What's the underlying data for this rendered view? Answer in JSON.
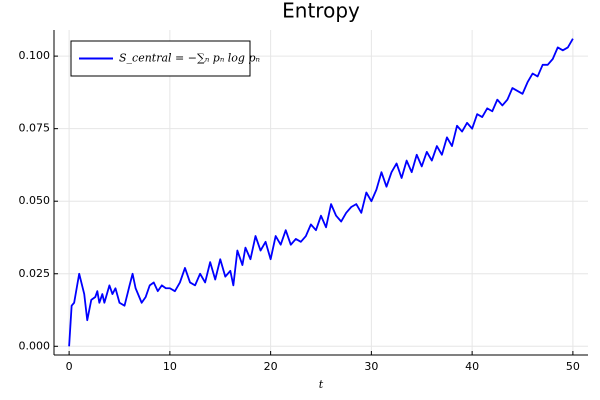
{
  "chart_data": {
    "type": "line",
    "title": "Entropy",
    "x_label": "t",
    "x": [
      0,
      0.25,
      0.5,
      1.0,
      1.5,
      1.8,
      2.2,
      2.6,
      2.8,
      3.0,
      3.3,
      3.5,
      4.0,
      4.3,
      4.6,
      5.0,
      5.5,
      6.0,
      6.3,
      6.6,
      7.2,
      7.6,
      8.0,
      8.4,
      8.8,
      9.2,
      9.6,
      10.0,
      10.5,
      11.0,
      11.5,
      12.0,
      12.5,
      13.0,
      13.5,
      14.0,
      14.5,
      15.0,
      15.5,
      16.0,
      16.3,
      16.7,
      17.2,
      17.5,
      18.0,
      18.5,
      19.0,
      19.5,
      20.0,
      20.5,
      21.0,
      21.5,
      22.0,
      22.5,
      23.0,
      23.5,
      24.0,
      24.5,
      25.0,
      25.5,
      26.0,
      26.5,
      27.0,
      27.5,
      28.0,
      28.5,
      29.0,
      29.5,
      30.0,
      30.5,
      31.0,
      31.5,
      32.0,
      32.5,
      33.0,
      33.5,
      34.0,
      34.5,
      35.0,
      35.5,
      36.0,
      36.5,
      37.0,
      37.5,
      38.0,
      38.5,
      39.0,
      39.5,
      40.0,
      40.5,
      41.0,
      41.5,
      42.0,
      42.5,
      43.0,
      43.5,
      44.0,
      44.5,
      45.0,
      45.5,
      46.0,
      46.5,
      47.0,
      47.5,
      48.0,
      48.5,
      49.0,
      49.5,
      50.0
    ],
    "series": [
      {
        "name": "S_central = −∑ₙ pₙ log pₙ",
        "color": "#0000ff",
        "values": [
          0.0,
          0.014,
          0.015,
          0.025,
          0.018,
          0.009,
          0.016,
          0.017,
          0.019,
          0.015,
          0.018,
          0.015,
          0.021,
          0.018,
          0.02,
          0.015,
          0.014,
          0.021,
          0.025,
          0.02,
          0.015,
          0.017,
          0.021,
          0.022,
          0.019,
          0.021,
          0.02,
          0.02,
          0.019,
          0.022,
          0.027,
          0.022,
          0.021,
          0.025,
          0.022,
          0.029,
          0.023,
          0.03,
          0.024,
          0.026,
          0.021,
          0.033,
          0.028,
          0.034,
          0.03,
          0.038,
          0.033,
          0.036,
          0.03,
          0.038,
          0.035,
          0.04,
          0.035,
          0.037,
          0.036,
          0.038,
          0.042,
          0.04,
          0.045,
          0.041,
          0.049,
          0.045,
          0.043,
          0.046,
          0.048,
          0.049,
          0.046,
          0.053,
          0.05,
          0.054,
          0.06,
          0.055,
          0.06,
          0.063,
          0.058,
          0.064,
          0.06,
          0.066,
          0.062,
          0.067,
          0.064,
          0.069,
          0.066,
          0.072,
          0.069,
          0.076,
          0.074,
          0.077,
          0.075,
          0.08,
          0.079,
          0.082,
          0.081,
          0.085,
          0.083,
          0.085,
          0.089,
          0.088,
          0.087,
          0.091,
          0.094,
          0.093,
          0.097,
          0.097,
          0.099,
          0.103,
          0.102,
          0.103,
          0.106
        ]
      }
    ],
    "xlim": [
      -1.5,
      51.5
    ],
    "xticks": [
      0,
      10,
      20,
      30,
      40,
      50
    ],
    "ylim": [
      -0.003,
      0.109
    ],
    "yticks": [
      {
        "value": 0,
        "label": "0.000"
      },
      {
        "value": 0.025,
        "label": "0.025"
      },
      {
        "value": 0.05,
        "label": "0.050"
      },
      {
        "value": 0.075,
        "label": "0.075"
      },
      {
        "value": 0.1,
        "label": "0.100"
      }
    ],
    "grid": true,
    "legend": "top-left"
  }
}
